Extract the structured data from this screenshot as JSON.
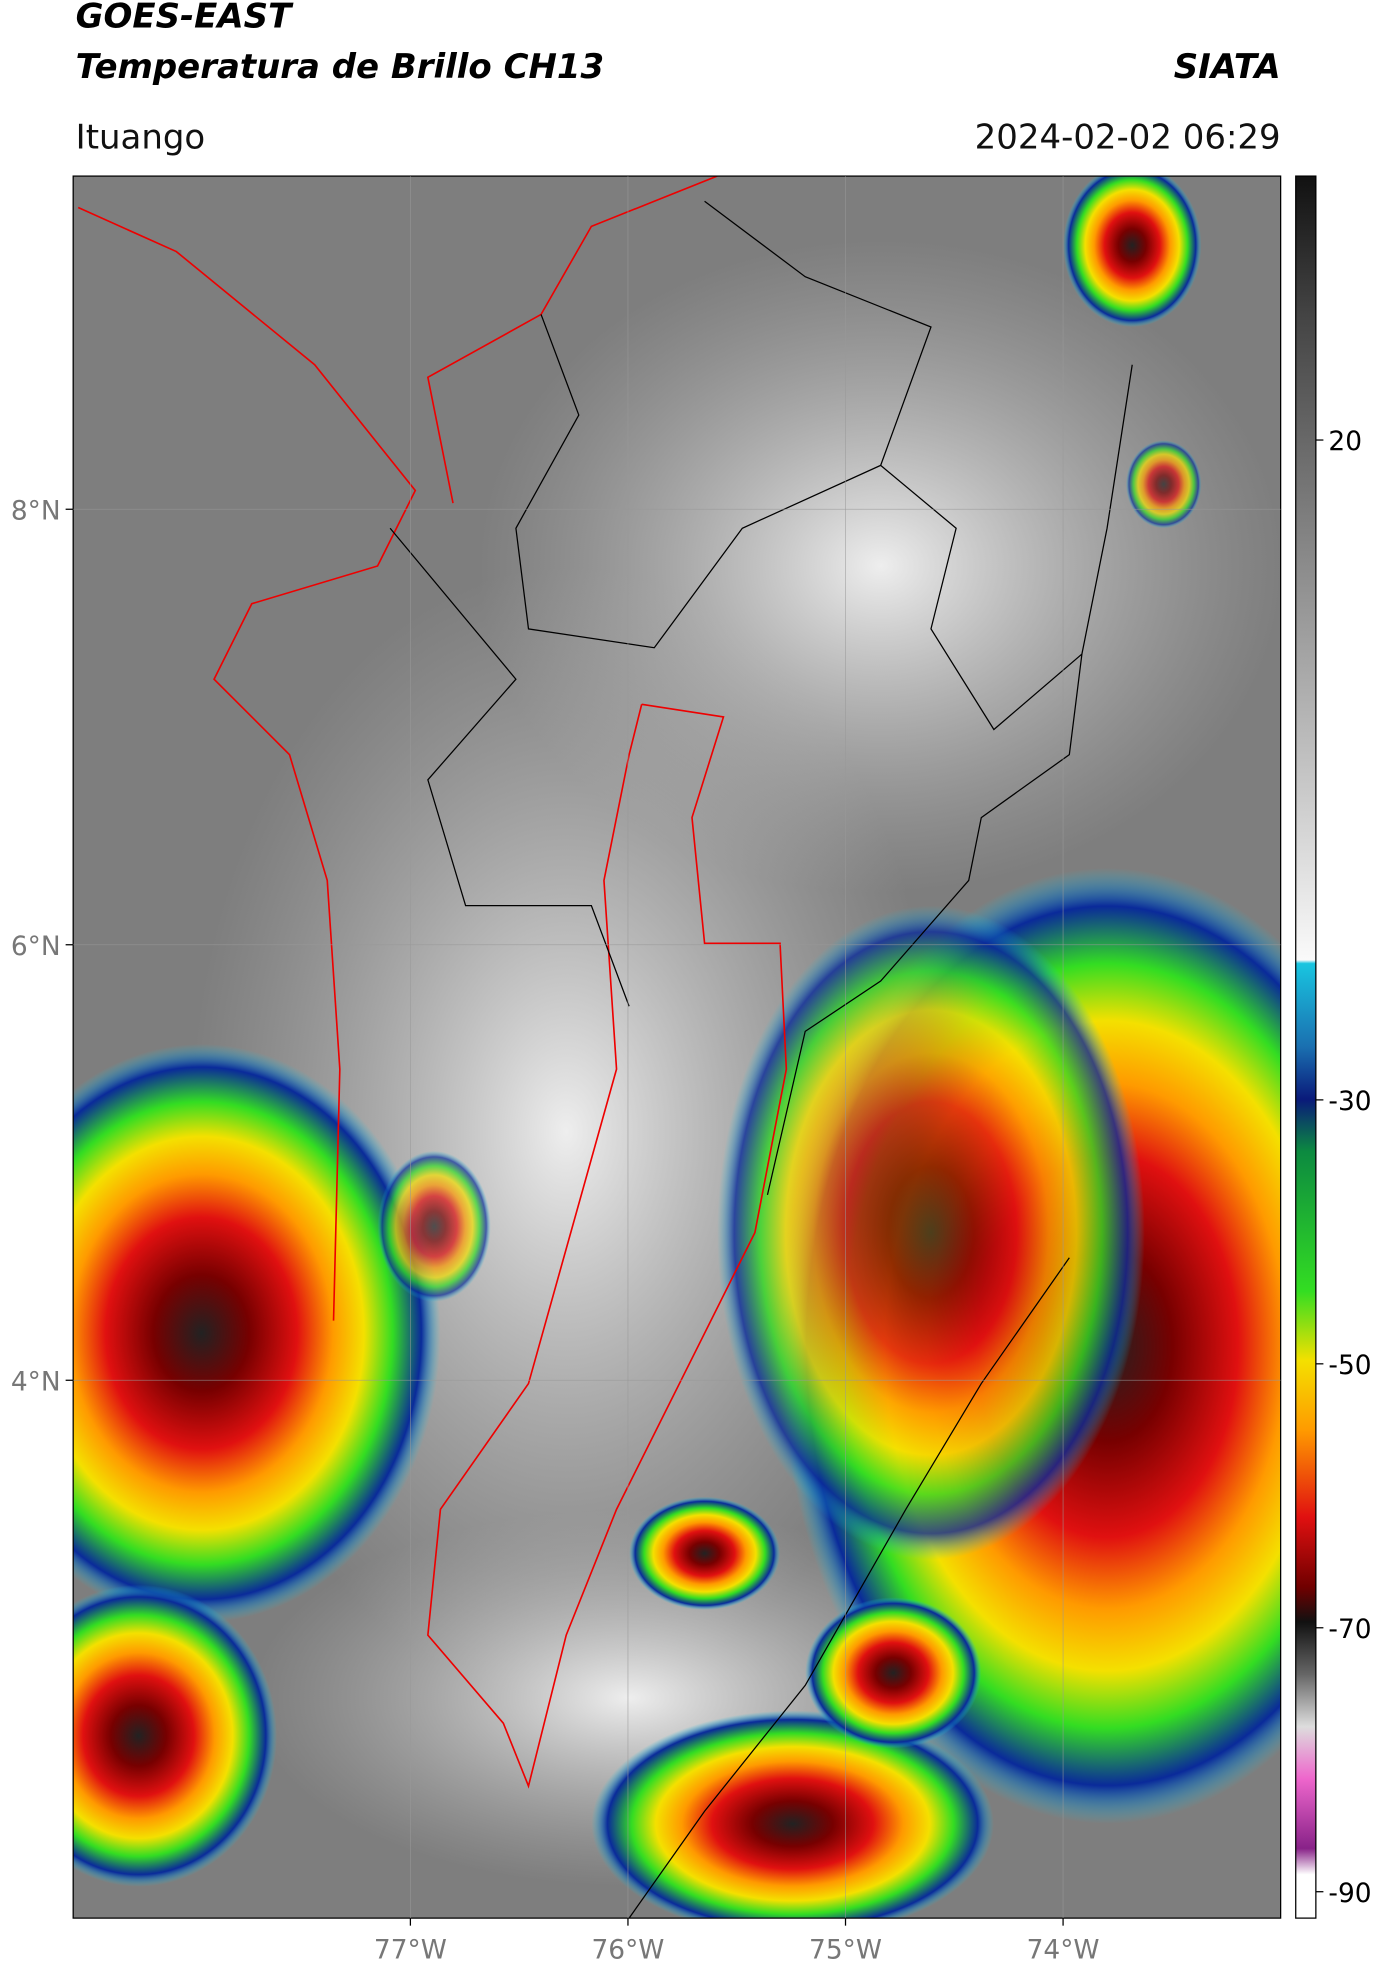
{
  "header": {
    "line1": "GOES-EAST",
    "line2": "Temperatura de Brillo CH13",
    "org": "SIATA",
    "place": "Ituango",
    "datetime": "2024-02-02 06:29"
  },
  "map": {
    "xlim": [
      -78.55,
      -73.0
    ],
    "ylim": [
      1.53,
      9.53
    ],
    "xticks": [
      {
        "value": -77,
        "label": "77°W"
      },
      {
        "value": -76,
        "label": "76°W"
      },
      {
        "value": -75,
        "label": "75°W"
      },
      {
        "value": -74,
        "label": "74°W"
      }
    ],
    "yticks": [
      {
        "value": 8,
        "label": "8°N"
      },
      {
        "value": 6,
        "label": "6°N"
      },
      {
        "value": 4,
        "label": "4°N"
      }
    ],
    "grid": true
  },
  "colorbar": {
    "ylim": [
      -92,
      40
    ],
    "yticks": [
      20,
      -30,
      -50,
      -70,
      -90
    ]
  }
}
